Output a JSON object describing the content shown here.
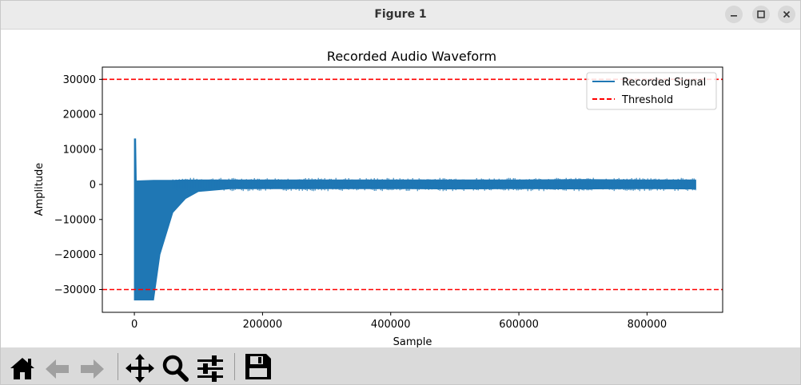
{
  "window": {
    "title": "Figure 1"
  },
  "toolbar": {
    "buttons": [
      {
        "name": "home",
        "icon": "home-icon"
      },
      {
        "name": "back",
        "icon": "arrow-left-icon"
      },
      {
        "name": "forward",
        "icon": "arrow-right-icon"
      },
      {
        "name": "pan",
        "icon": "move-icon"
      },
      {
        "name": "zoom",
        "icon": "magnifier-icon"
      },
      {
        "name": "configure-subplots",
        "icon": "sliders-icon"
      },
      {
        "name": "save",
        "icon": "floppy-disk-icon"
      }
    ]
  },
  "chart_data": {
    "type": "line",
    "title": "Recorded Audio Waveform",
    "xlabel": "Sample",
    "ylabel": "Amplitude",
    "xlim": [
      -50000,
      918000
    ],
    "ylim": [
      -36500,
      33500
    ],
    "xticks": [
      0,
      200000,
      400000,
      600000,
      800000
    ],
    "xtick_labels": [
      "0",
      "200000",
      "400000",
      "600000",
      "800000"
    ],
    "yticks": [
      30000,
      20000,
      10000,
      0,
      -10000,
      -20000,
      -30000
    ],
    "ytick_labels": [
      "30000",
      "20000",
      "10000",
      "0",
      "−10000",
      "−20000",
      "−30000"
    ],
    "grid": false,
    "legend_position": "upper right",
    "series": [
      {
        "name": "Recorded Signal",
        "style": "solid",
        "color": "#1f77b4",
        "envelope": {
          "x": [
            0,
            2000,
            3000,
            30000,
            40000,
            60000,
            80000,
            100000,
            150000,
            200000,
            300000,
            400000,
            500000,
            600000,
            700000,
            800000,
            876000
          ],
          "upper": [
            13000,
            13000,
            1000,
            1200,
            1200,
            1200,
            1300,
            1300,
            1300,
            1300,
            1300,
            1300,
            1300,
            1300,
            1400,
            1300,
            1300
          ],
          "lower": [
            -33000,
            -33000,
            -33000,
            -33000,
            -20000,
            -8000,
            -4000,
            -2000,
            -1200,
            -1200,
            -1200,
            -1200,
            -1300,
            -1200,
            -1300,
            -1200,
            -1300
          ]
        }
      },
      {
        "name": "Threshold",
        "style": "dashed",
        "color": "#ff0000",
        "y_values": [
          30000,
          -30000
        ]
      }
    ]
  }
}
